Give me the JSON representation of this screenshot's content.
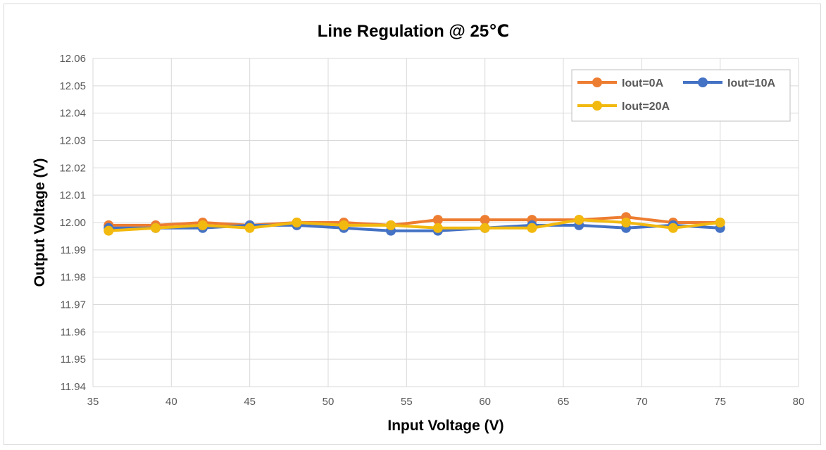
{
  "chart_data": {
    "type": "line",
    "title": "Line Regulation @ 25℃",
    "xlabel": "Input Voltage (V)",
    "ylabel": "Output Voltage (V)",
    "xlim": [
      35,
      80
    ],
    "ylim": [
      11.94,
      12.06
    ],
    "xticks": [
      35,
      40,
      45,
      50,
      55,
      60,
      65,
      70,
      75,
      80
    ],
    "yticks": [
      11.94,
      11.95,
      11.96,
      11.97,
      11.98,
      11.99,
      12.0,
      12.01,
      12.02,
      12.03,
      12.04,
      12.05,
      12.06
    ],
    "grid": true,
    "legend": "top-right",
    "x": [
      36,
      39,
      42,
      45,
      48,
      51,
      54,
      57,
      60,
      63,
      66,
      69,
      72,
      75
    ],
    "series": [
      {
        "name": "Iout=0A",
        "color": "#ED7D31",
        "values": [
          11.999,
          11.999,
          12.0,
          11.999,
          12.0,
          12.0,
          11.999,
          12.001,
          12.001,
          12.001,
          12.001,
          12.002,
          12.0,
          12.0
        ]
      },
      {
        "name": "Iout=10A",
        "color": "#4472C4",
        "values": [
          11.998,
          11.998,
          11.998,
          11.999,
          11.999,
          11.998,
          11.997,
          11.997,
          11.998,
          11.999,
          11.999,
          11.998,
          11.999,
          11.998
        ]
      },
      {
        "name": "Iout=20A",
        "color": "#F2B90F",
        "values": [
          11.997,
          11.998,
          11.999,
          11.998,
          12.0,
          11.999,
          11.999,
          11.998,
          11.998,
          11.998,
          12.001,
          12.0,
          11.998,
          12.0
        ]
      }
    ]
  }
}
